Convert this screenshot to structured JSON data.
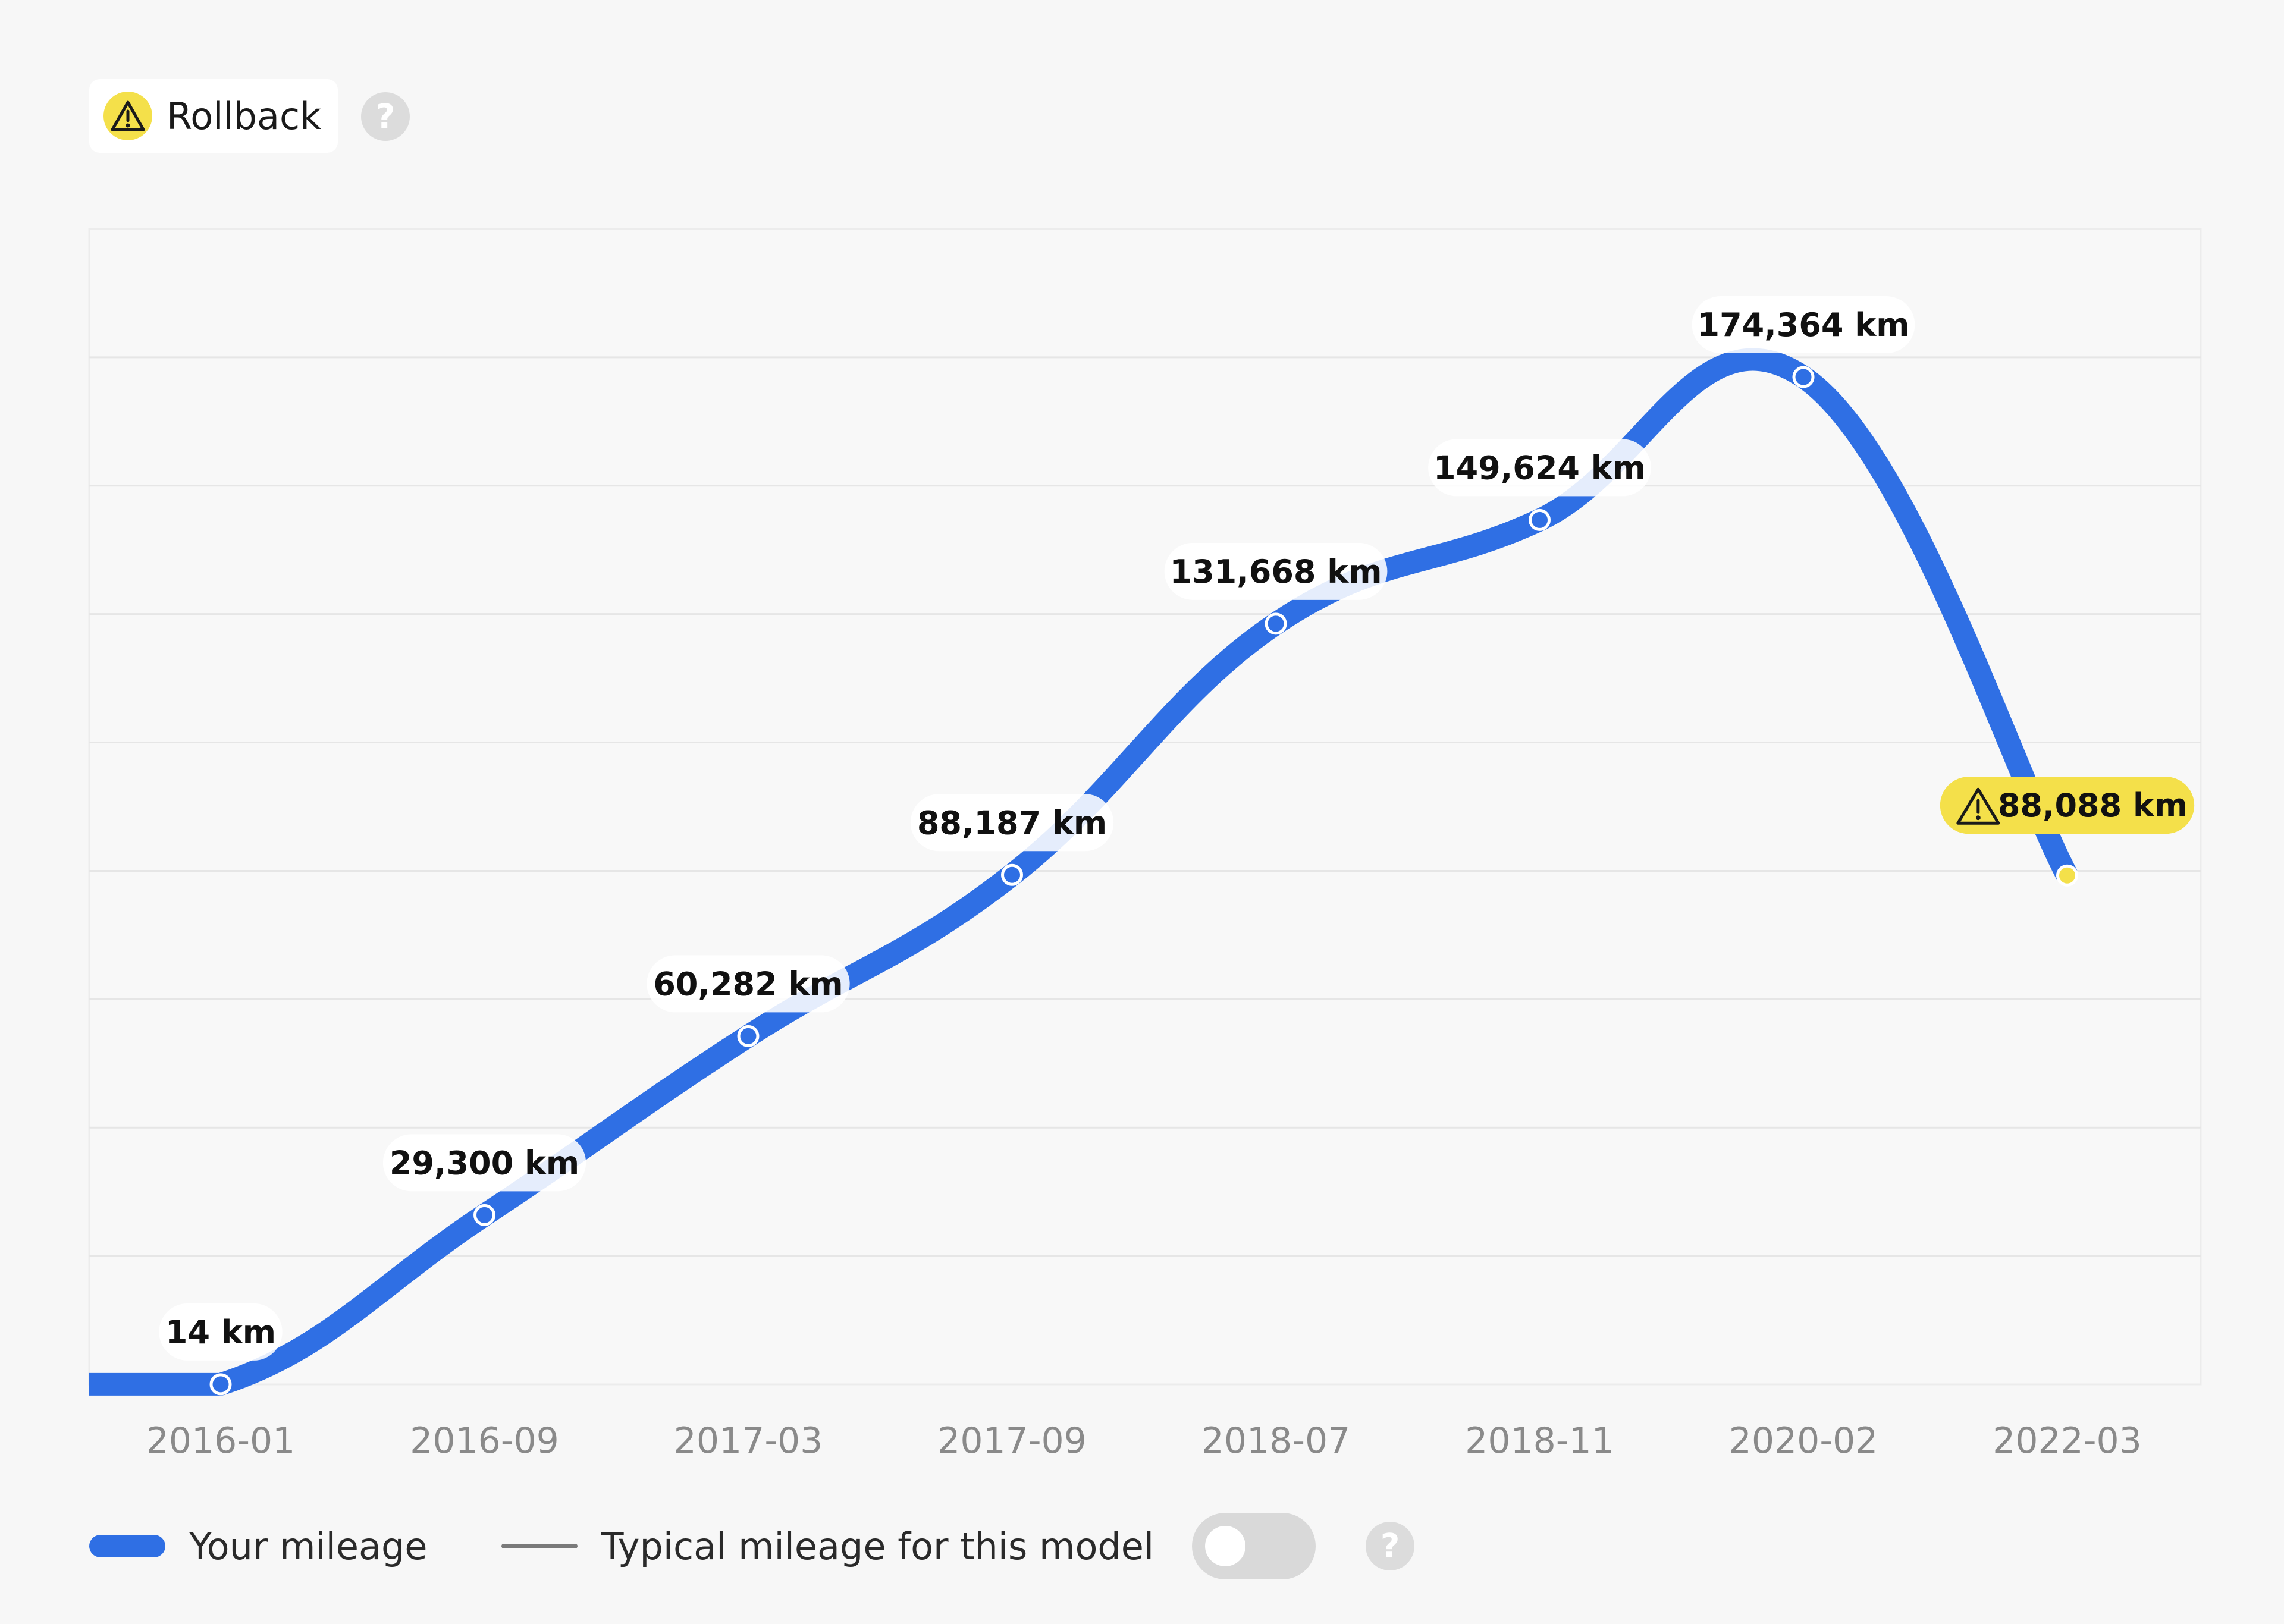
{
  "status_badge": {
    "label": "Rollback",
    "icon": "warning-icon",
    "color": "#f4e04a"
  },
  "help_icon_text": "?",
  "chart_data": {
    "type": "line",
    "categories": [
      "2016-01",
      "2016-09",
      "2017-03",
      "2017-09",
      "2018-07",
      "2018-11",
      "2020-02",
      "2022-03"
    ],
    "series": [
      {
        "name": "Your mileage",
        "values": [
          14,
          29300,
          60282,
          88187,
          131668,
          149624,
          174364,
          88088
        ],
        "labels": [
          "14 km",
          "29,300 km",
          "60,282 km",
          "88,187 km",
          "131,668 km",
          "149,624 km",
          "174,364 km",
          "88,088 km"
        ],
        "color": "#2f6fe4"
      }
    ],
    "flagged_point": {
      "index": 7,
      "color": "#f4e04a",
      "icon": "warning-icon"
    },
    "ylim": [
      0,
      200000
    ],
    "grid": true,
    "xlabel": "",
    "ylabel": ""
  },
  "legend": {
    "mine_label": "Your mileage",
    "typical_label": "Typical mileage for this model",
    "typical_color": "#7a7a7a",
    "typical_toggle_on": false
  }
}
